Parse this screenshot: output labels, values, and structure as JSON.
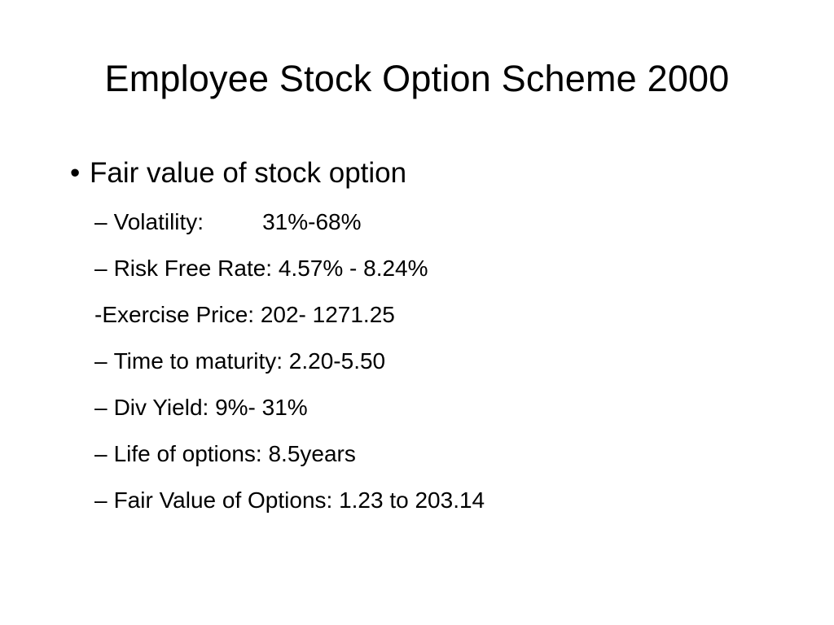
{
  "slide": {
    "title": "Employee Stock Option Scheme 2000",
    "bullet": {
      "marker": "•",
      "text": "Fair value of stock option"
    },
    "sub_items": [
      {
        "marker": "–",
        "label": "Volatility:",
        "value": "31%-68%"
      },
      {
        "marker": "–",
        "text": "Risk Free Rate: 4.57% - 8.24%"
      },
      {
        "marker": "",
        "text": "-Exercise Price: 202- 1271.25"
      },
      {
        "marker": "–",
        "text": "Time to maturity: 2.20-5.50"
      },
      {
        "marker": "–",
        "text": "Div Yield: 9%- 31%"
      },
      {
        "marker": "–",
        "text": "Life of options: 8.5years"
      },
      {
        "marker": "–",
        "text": "Fair Value of Options: 1.23 to 203.14"
      }
    ]
  }
}
